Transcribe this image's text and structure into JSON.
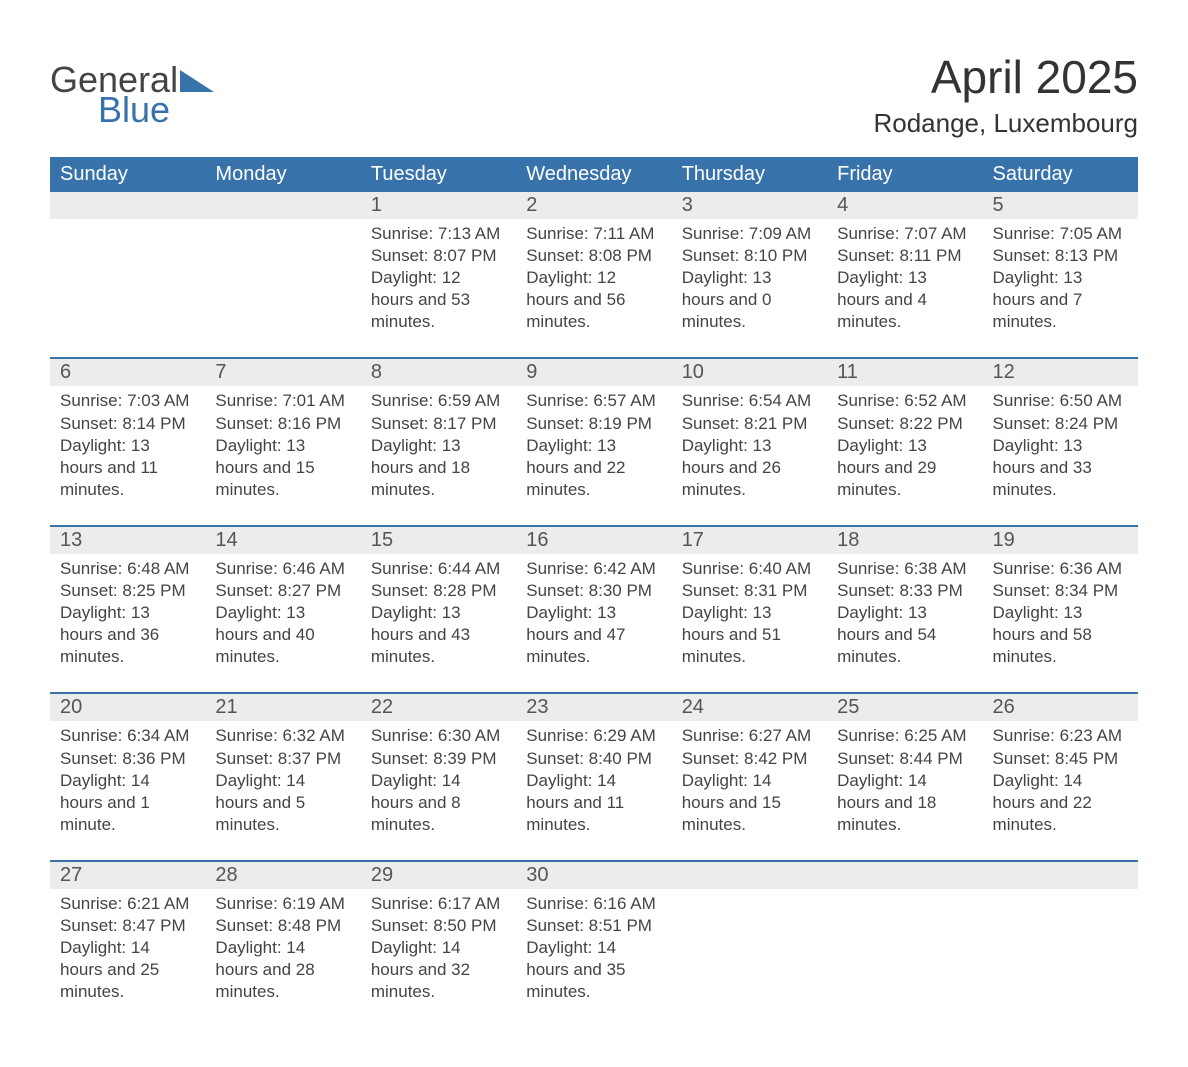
{
  "logo": {
    "line1": "General",
    "line2": "Blue"
  },
  "title": "April 2025",
  "location": "Rodange, Luxembourg",
  "colors": {
    "brand_blue": "#3872ab",
    "header_bg": "#3872ab",
    "header_text": "#ffffff",
    "daynum_bg": "#ececec",
    "row_border": "#3872ab",
    "page_bg": "#ffffff",
    "body_text": "#444444"
  },
  "typography": {
    "title_fontsize": 46,
    "location_fontsize": 26,
    "weekday_fontsize": 20,
    "daynum_fontsize": 20,
    "body_fontsize": 17
  },
  "layout": {
    "columns": 7,
    "weeks": 5,
    "first_day_column_index": 2
  },
  "weekdays": [
    "Sunday",
    "Monday",
    "Tuesday",
    "Wednesday",
    "Thursday",
    "Friday",
    "Saturday"
  ],
  "labels": {
    "sunrise": "Sunrise:",
    "sunset": "Sunset:",
    "daylight": "Daylight:"
  },
  "days": [
    {
      "n": 1,
      "sunrise": "7:13 AM",
      "sunset": "8:07 PM",
      "daylight": "12 hours and 53 minutes."
    },
    {
      "n": 2,
      "sunrise": "7:11 AM",
      "sunset": "8:08 PM",
      "daylight": "12 hours and 56 minutes."
    },
    {
      "n": 3,
      "sunrise": "7:09 AM",
      "sunset": "8:10 PM",
      "daylight": "13 hours and 0 minutes."
    },
    {
      "n": 4,
      "sunrise": "7:07 AM",
      "sunset": "8:11 PM",
      "daylight": "13 hours and 4 minutes."
    },
    {
      "n": 5,
      "sunrise": "7:05 AM",
      "sunset": "8:13 PM",
      "daylight": "13 hours and 7 minutes."
    },
    {
      "n": 6,
      "sunrise": "7:03 AM",
      "sunset": "8:14 PM",
      "daylight": "13 hours and 11 minutes."
    },
    {
      "n": 7,
      "sunrise": "7:01 AM",
      "sunset": "8:16 PM",
      "daylight": "13 hours and 15 minutes."
    },
    {
      "n": 8,
      "sunrise": "6:59 AM",
      "sunset": "8:17 PM",
      "daylight": "13 hours and 18 minutes."
    },
    {
      "n": 9,
      "sunrise": "6:57 AM",
      "sunset": "8:19 PM",
      "daylight": "13 hours and 22 minutes."
    },
    {
      "n": 10,
      "sunrise": "6:54 AM",
      "sunset": "8:21 PM",
      "daylight": "13 hours and 26 minutes."
    },
    {
      "n": 11,
      "sunrise": "6:52 AM",
      "sunset": "8:22 PM",
      "daylight": "13 hours and 29 minutes."
    },
    {
      "n": 12,
      "sunrise": "6:50 AM",
      "sunset": "8:24 PM",
      "daylight": "13 hours and 33 minutes."
    },
    {
      "n": 13,
      "sunrise": "6:48 AM",
      "sunset": "8:25 PM",
      "daylight": "13 hours and 36 minutes."
    },
    {
      "n": 14,
      "sunrise": "6:46 AM",
      "sunset": "8:27 PM",
      "daylight": "13 hours and 40 minutes."
    },
    {
      "n": 15,
      "sunrise": "6:44 AM",
      "sunset": "8:28 PM",
      "daylight": "13 hours and 43 minutes."
    },
    {
      "n": 16,
      "sunrise": "6:42 AM",
      "sunset": "8:30 PM",
      "daylight": "13 hours and 47 minutes."
    },
    {
      "n": 17,
      "sunrise": "6:40 AM",
      "sunset": "8:31 PM",
      "daylight": "13 hours and 51 minutes."
    },
    {
      "n": 18,
      "sunrise": "6:38 AM",
      "sunset": "8:33 PM",
      "daylight": "13 hours and 54 minutes."
    },
    {
      "n": 19,
      "sunrise": "6:36 AM",
      "sunset": "8:34 PM",
      "daylight": "13 hours and 58 minutes."
    },
    {
      "n": 20,
      "sunrise": "6:34 AM",
      "sunset": "8:36 PM",
      "daylight": "14 hours and 1 minute."
    },
    {
      "n": 21,
      "sunrise": "6:32 AM",
      "sunset": "8:37 PM",
      "daylight": "14 hours and 5 minutes."
    },
    {
      "n": 22,
      "sunrise": "6:30 AM",
      "sunset": "8:39 PM",
      "daylight": "14 hours and 8 minutes."
    },
    {
      "n": 23,
      "sunrise": "6:29 AM",
      "sunset": "8:40 PM",
      "daylight": "14 hours and 11 minutes."
    },
    {
      "n": 24,
      "sunrise": "6:27 AM",
      "sunset": "8:42 PM",
      "daylight": "14 hours and 15 minutes."
    },
    {
      "n": 25,
      "sunrise": "6:25 AM",
      "sunset": "8:44 PM",
      "daylight": "14 hours and 18 minutes."
    },
    {
      "n": 26,
      "sunrise": "6:23 AM",
      "sunset": "8:45 PM",
      "daylight": "14 hours and 22 minutes."
    },
    {
      "n": 27,
      "sunrise": "6:21 AM",
      "sunset": "8:47 PM",
      "daylight": "14 hours and 25 minutes."
    },
    {
      "n": 28,
      "sunrise": "6:19 AM",
      "sunset": "8:48 PM",
      "daylight": "14 hours and 28 minutes."
    },
    {
      "n": 29,
      "sunrise": "6:17 AM",
      "sunset": "8:50 PM",
      "daylight": "14 hours and 32 minutes."
    },
    {
      "n": 30,
      "sunrise": "6:16 AM",
      "sunset": "8:51 PM",
      "daylight": "14 hours and 35 minutes."
    }
  ]
}
